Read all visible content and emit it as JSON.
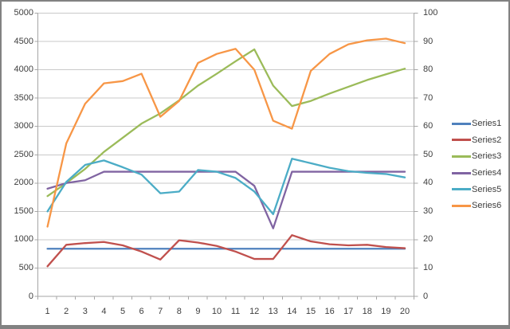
{
  "chart_data": {
    "type": "line",
    "title": "",
    "xlabel": "",
    "ylabel": "",
    "grid": true,
    "legend_position": "right",
    "x": [
      1,
      2,
      3,
      4,
      5,
      6,
      7,
      8,
      9,
      10,
      11,
      12,
      13,
      14,
      15,
      16,
      17,
      18,
      19,
      20
    ],
    "x_tick_labels": [
      "1",
      "2",
      "3",
      "4",
      "5",
      "6",
      "7",
      "8",
      "9",
      "10",
      "11",
      "12",
      "13",
      "14",
      "15",
      "16",
      "17",
      "18",
      "19",
      "20"
    ],
    "left_axis": {
      "min": 0,
      "max": 5000,
      "step": 500,
      "tick_labels": [
        "0",
        "500",
        "1000",
        "1500",
        "2000",
        "2500",
        "3000",
        "3500",
        "4000",
        "4500",
        "5000"
      ]
    },
    "right_axis": {
      "min": 0,
      "max": 100,
      "step": 10,
      "tick_labels": [
        "0",
        "10",
        "20",
        "30",
        "40",
        "50",
        "60",
        "70",
        "80",
        "90",
        "100"
      ]
    },
    "series": [
      {
        "name": "Series1",
        "color": "#4F81BD",
        "values": [
          840,
          840,
          840,
          840,
          840,
          840,
          840,
          840,
          840,
          840,
          840,
          840,
          840,
          840,
          840,
          840,
          840,
          840,
          840,
          840
        ]
      },
      {
        "name": "Series2",
        "color": "#C0504D",
        "values": [
          530,
          910,
          940,
          960,
          900,
          790,
          650,
          990,
          950,
          890,
          790,
          660,
          660,
          1080,
          970,
          920,
          900,
          910,
          870,
          850
        ]
      },
      {
        "name": "Series3",
        "color": "#9BBB59",
        "values": [
          1770,
          2000,
          2250,
          2550,
          2800,
          3050,
          3230,
          3460,
          3720,
          3930,
          4150,
          4360,
          3720,
          3360,
          3450,
          3580,
          3700,
          3820,
          3920,
          4020
        ]
      },
      {
        "name": "Series4",
        "color": "#8064A2",
        "values": [
          1900,
          2000,
          2050,
          2200,
          2200,
          2200,
          2200,
          2200,
          2200,
          2200,
          2200,
          1950,
          1200,
          2200,
          2200,
          2200,
          2200,
          2200,
          2200,
          2200
        ]
      },
      {
        "name": "Series5",
        "color": "#4BACC6",
        "values": [
          1500,
          2020,
          2320,
          2400,
          2280,
          2150,
          1820,
          1850,
          2230,
          2200,
          2090,
          1850,
          1450,
          2430,
          2350,
          2270,
          2210,
          2180,
          2160,
          2100
        ]
      },
      {
        "name": "Series6",
        "color": "#F79646",
        "values": [
          1230,
          2700,
          3400,
          3760,
          3800,
          3930,
          3170,
          3450,
          4120,
          4280,
          4370,
          4000,
          3100,
          2960,
          3980,
          4280,
          4450,
          4520,
          4550,
          4470
        ]
      }
    ],
    "colors": {
      "gridline": "#C9C9C9",
      "axis_line": "#A6A6A6",
      "tick_text": "#3D3D3D",
      "frame_border": "#828282",
      "background": "#FFFFFF"
    }
  }
}
